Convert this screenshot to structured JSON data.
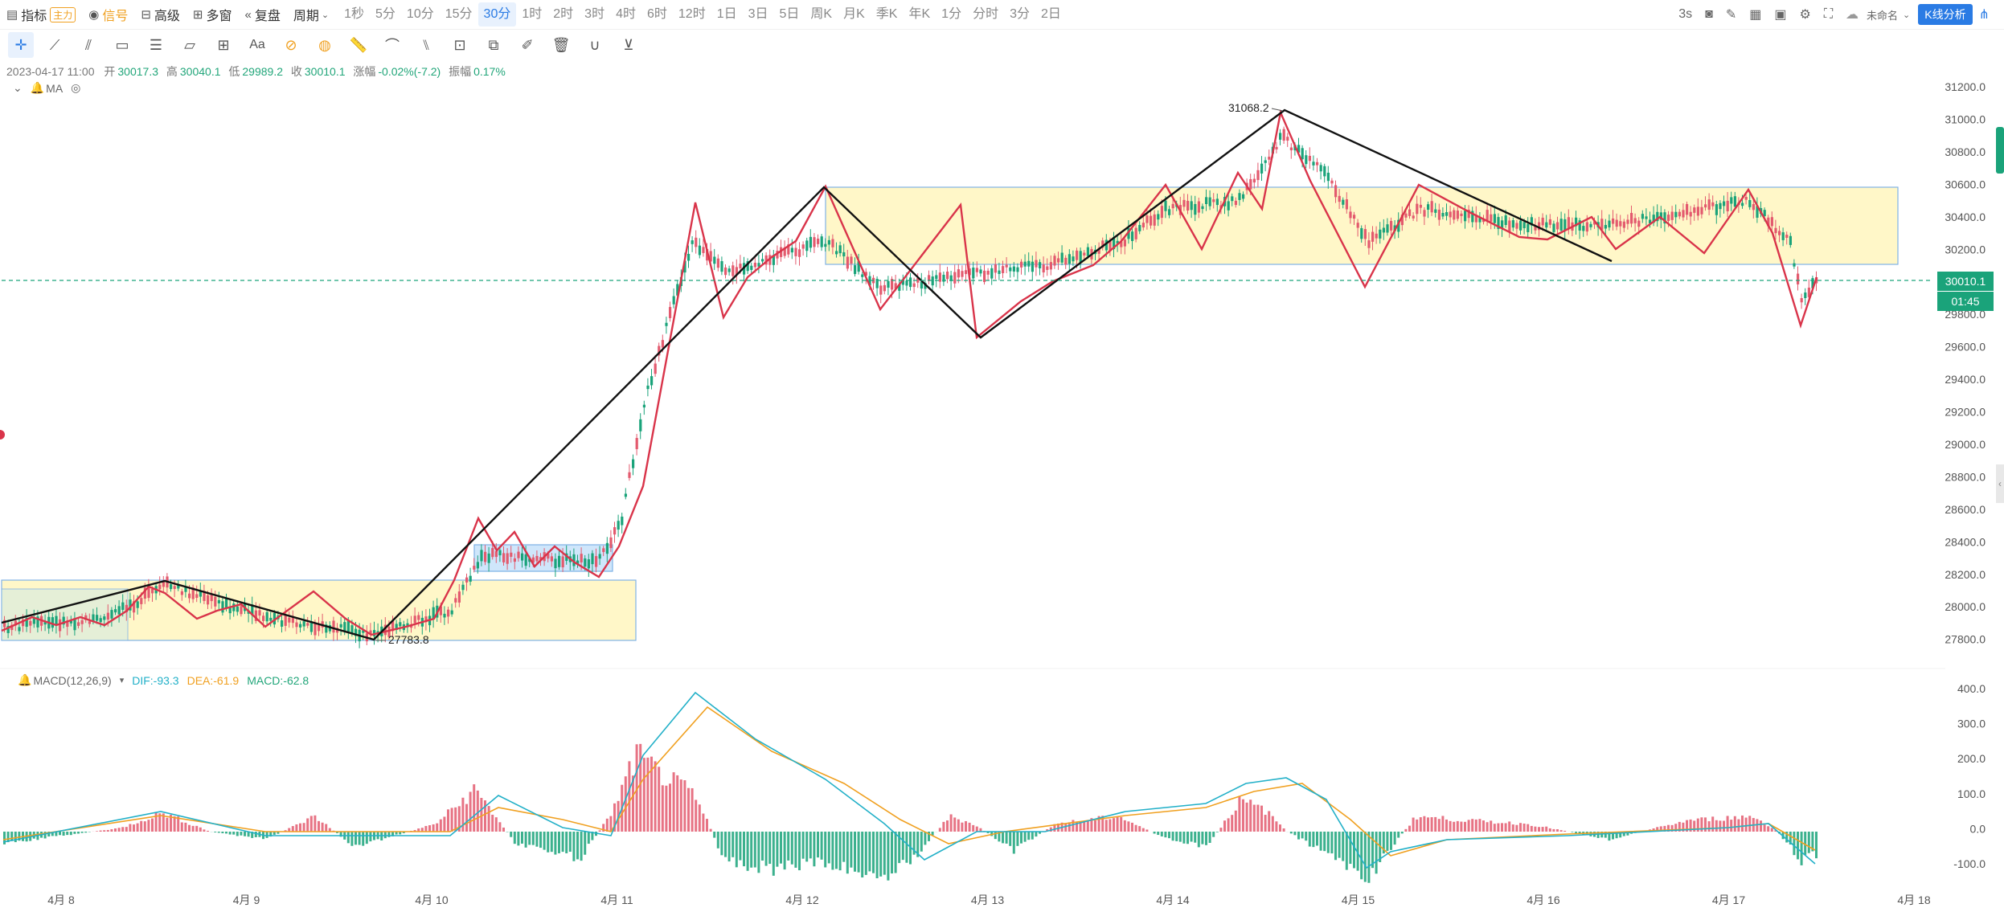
{
  "toolbar": {
    "indicator_label": "指标",
    "indicator_badge": "主力",
    "signal_label": "信号",
    "advanced_label": "高级",
    "multiwindow_label": "多窗",
    "replay_label": "复盘",
    "period_label": "周期",
    "periods": [
      "1秒",
      "5分",
      "10分",
      "15分",
      "30分",
      "1时",
      "2时",
      "3时",
      "4时",
      "6时",
      "12时",
      "1日",
      "3日",
      "5日",
      "周K",
      "月K",
      "季K",
      "年K",
      "1分",
      "分时",
      "3分",
      "2日"
    ],
    "active_period": "30分",
    "refresh_label": "3s",
    "layout_name": "未命名",
    "kline_analysis_label": "K线分析"
  },
  "drawing_tools": [
    "crosshair-icon",
    "line-icon",
    "parallel-channel-icon",
    "rectangle-icon",
    "fibonacci-icon",
    "polygon-icon",
    "add-icon",
    "text-icon",
    "pattern-icon",
    "pattern-alt-icon",
    "ruler-icon",
    "brush-icon",
    "bar-pattern-icon",
    "lock-icon",
    "copy-icon",
    "edit-icon",
    "trash-icon",
    "magnet-icon",
    "filter-icon"
  ],
  "text_tool_label": "Aa",
  "ohlc": {
    "datetime": "2023-04-17 11:00",
    "open_label": "开",
    "open": "30017.3",
    "high_label": "高",
    "high": "30040.1",
    "low_label": "低",
    "low": "29989.2",
    "close_label": "收",
    "close": "30010.1",
    "change_label": "涨幅",
    "change": "-0.02%(-7.2)",
    "amp_label": "振幅",
    "amp": "0.17%"
  },
  "ma_label": "MA",
  "price_axis": [
    "31200.0",
    "31000.0",
    "30800.0",
    "30600.0",
    "30400.0",
    "30200.0",
    "30000.0",
    "29800.0",
    "29600.0",
    "29400.0",
    "29200.0",
    "29000.0",
    "28800.0",
    "28600.0",
    "28400.0",
    "28200.0",
    "28000.0",
    "27800.0"
  ],
  "current_price": "30010.1",
  "countdown": "01:45",
  "high_annotation": "31068.2",
  "low_annotation": "27783.8",
  "macd": {
    "label": "MACD(12,26,9)",
    "dif": "DIF:-93.3",
    "dea": "DEA:-61.9",
    "macd": "MACD:-62.8",
    "axis": [
      "400.0",
      "300.0",
      "200.0",
      "100.0",
      "0.0",
      "-100.0"
    ]
  },
  "date_axis": [
    "4月 8",
    "4月 9",
    "4月 10",
    "4月 11",
    "4月 12",
    "4月 13",
    "4月 14",
    "4月 15",
    "4月 16",
    "4月 17",
    "4月 18"
  ],
  "colors": {
    "up": "#e35a6e",
    "down": "#1aa37a",
    "accent": "#2a7be4",
    "box_fill": "#fff7c8",
    "box_blue_fill": "#cfe6fb"
  }
}
